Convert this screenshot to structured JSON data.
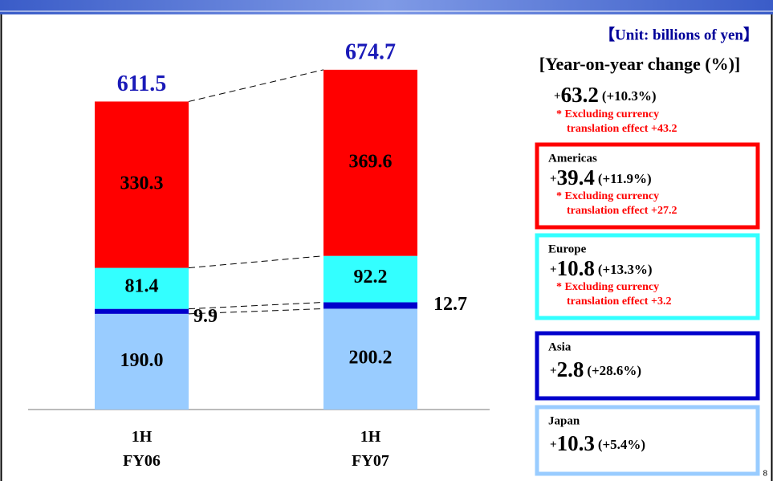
{
  "chart_data": {
    "type": "stacked_bar",
    "unit_note": "【Unit: billions of yen】",
    "change_heading": "[Year-on-year change (%)]",
    "categories": [
      "1H FY06",
      "1H FY07"
    ],
    "ylim": [
      0,
      700
    ],
    "totals": [
      611.5,
      674.7
    ],
    "total_color": "#1a1ab8",
    "total_change": {
      "sign": "+",
      "amount": 63.2,
      "pct": "(+10.3%)",
      "note": [
        "* Excluding currency",
        "translation effect +43.2"
      ]
    },
    "series": [
      {
        "name": "Japan",
        "color": "#99ccff",
        "values": [
          190.0,
          200.2
        ],
        "value_labels": [
          "190.0",
          "200.2"
        ],
        "change": {
          "sign": "+",
          "amount": 10.3,
          "pct": "(+5.4%)"
        }
      },
      {
        "name": "Asia",
        "color": "#0000cc",
        "values": [
          9.9,
          12.7
        ],
        "value_labels": [
          "9.9",
          "12.7"
        ],
        "change": {
          "sign": "+",
          "amount": 2.8,
          "pct": "(+28.6%)"
        }
      },
      {
        "name": "Europe",
        "color": "#33ffff",
        "values": [
          81.4,
          92.2
        ],
        "value_labels": [
          "81.4",
          "92.2"
        ],
        "change": {
          "sign": "+",
          "amount": 10.8,
          "pct": "(+13.3%)",
          "note": [
            "* Excluding currency",
            "translation effect +3.2"
          ]
        }
      },
      {
        "name": "Americas",
        "color": "#ff0000",
        "values": [
          330.3,
          369.6
        ],
        "value_labels": [
          "330.3",
          "369.6"
        ],
        "change": {
          "sign": "+",
          "amount": 39.4,
          "pct": "(+11.9%)",
          "note": [
            "* Excluding currency",
            "translation effect +27.2"
          ]
        }
      }
    ],
    "page_number": 8
  }
}
